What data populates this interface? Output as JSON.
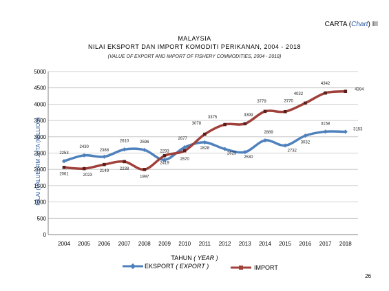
{
  "header": {
    "carta": "CARTA (",
    "carta_chart": "Chart",
    "carta_suffix": ") III"
  },
  "page_number": "26",
  "chart_data": {
    "type": "line",
    "title": "MALAYSIA",
    "subtitle": "NILAI EKSPORT DAN IMPORT KOMODITI PERIKANAN, 2004 - 2018",
    "subtitle_en": "(VALUE OF EXPORT AND IMPORT OF FISHERY COMMODITIES, 2004 - 2018)",
    "xlabel": "TAHUN",
    "xlabel_en": "( YEAR )",
    "ylabel": "NILAI (VALUE) RM JUTA (MILLION)",
    "ylim": [
      0,
      5000
    ],
    "yticks": [
      0,
      500,
      1000,
      1500,
      2000,
      2500,
      3000,
      3500,
      4000,
      4500,
      5000
    ],
    "categories": [
      "2004",
      "2005",
      "2006",
      "2007",
      "2008",
      "2009",
      "2010",
      "2011",
      "2012",
      "2013",
      "2014",
      "2015",
      "2016",
      "2017",
      "2018"
    ],
    "grid": true,
    "legend_position": "bottom",
    "series": [
      {
        "name": "EKSPORT",
        "name_en": "( EXPORT )",
        "color": "#4f81bd",
        "values": [
          2253,
          2430,
          2388,
          2610,
          2596,
          2293,
          2677,
          2828,
          2623,
          2530,
          2889,
          2732,
          3032,
          3158,
          3153
        ]
      },
      {
        "name": "IMPORT",
        "name_en": "",
        "color": "#a0403a",
        "values": [
          2061,
          2023,
          2149,
          2238,
          1997,
          2419,
          2570,
          3078,
          3375,
          3399,
          3779,
          3770,
          4032,
          4342,
          4394
        ]
      }
    ]
  },
  "data_labels": {
    "export": [
      "2253",
      "2430",
      "2388",
      "2610",
      "2596",
      "2293",
      "2677",
      "2828",
      "2623",
      "2530",
      "2889",
      "2732",
      "3032",
      "3158",
      "3153"
    ],
    "import": [
      "2061",
      "2023",
      "2149",
      "2238",
      "1997",
      "2419",
      "2570",
      "3078",
      "3375",
      "3399",
      "3779",
      "3770",
      "4032",
      "4342",
      "4394"
    ]
  }
}
